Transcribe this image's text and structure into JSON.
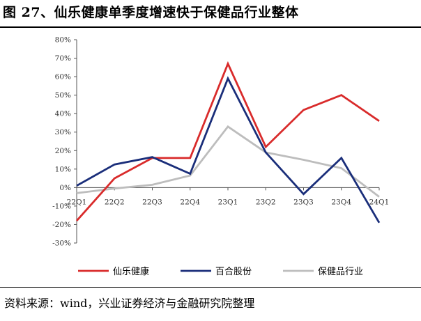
{
  "title": "图 27、仙乐健康单季度增速快于保健品行业整体",
  "source": "资料来源：wind，兴业证券经济与金融研究院整理",
  "chart_data": {
    "type": "line",
    "categories": [
      "22Q1",
      "22Q2",
      "22Q3",
      "22Q4",
      "23Q1",
      "23Q2",
      "23Q3",
      "23Q4",
      "24Q1"
    ],
    "ylim": [
      -30,
      80
    ],
    "yticks": [
      -30,
      -20,
      -10,
      0,
      10,
      20,
      30,
      40,
      50,
      60,
      70,
      80
    ],
    "ytick_labels": [
      "-30%",
      "-20%",
      "-10%",
      "0%",
      "10%",
      "20%",
      "30%",
      "40%",
      "50%",
      "60%",
      "70%",
      "80%"
    ],
    "grid": false,
    "legend_position": "bottom",
    "series": [
      {
        "name": "仙乐健康",
        "color": "#d92b2b",
        "values": [
          -18,
          5,
          16,
          16,
          67,
          22,
          42,
          50,
          36
        ]
      },
      {
        "name": "百合股份",
        "color": "#1a2e7a",
        "values": [
          1,
          12.5,
          16.5,
          7.5,
          59,
          19,
          -3.5,
          16,
          -19
        ]
      },
      {
        "name": "保健品行业",
        "color": "#bdbdbd",
        "values": [
          -3,
          -0.5,
          1.5,
          6.5,
          33,
          19,
          15,
          10.5,
          -5
        ]
      }
    ]
  }
}
